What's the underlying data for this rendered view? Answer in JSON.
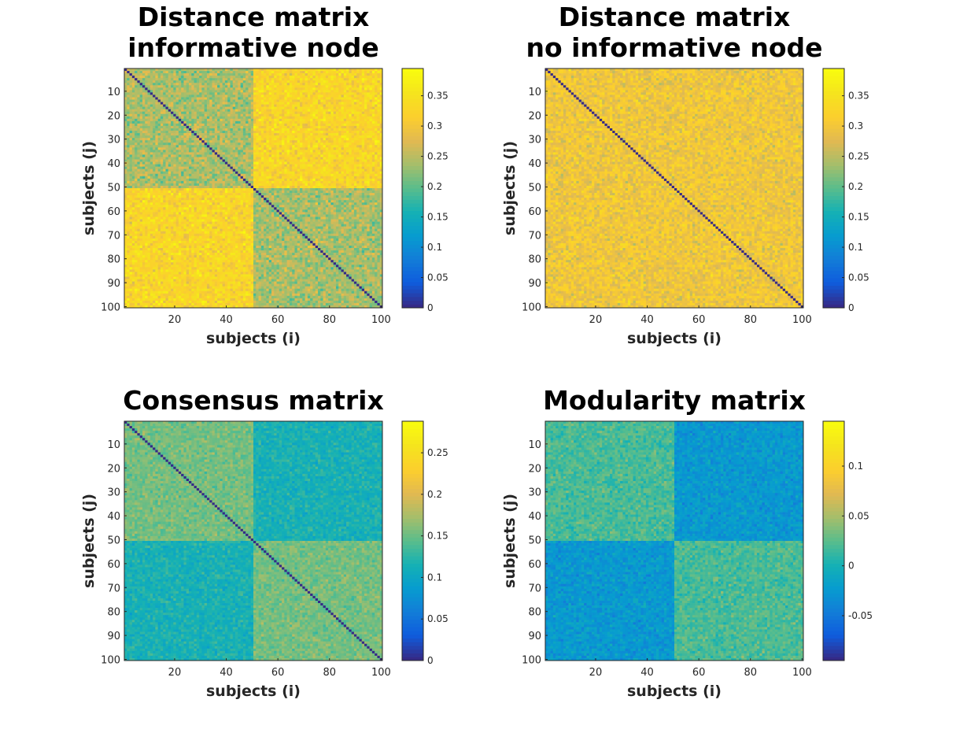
{
  "chart_data": [
    {
      "type": "heatmap",
      "title_lines": [
        "Distance matrix",
        "informative node"
      ],
      "xlabel": "subjects (i)",
      "ylabel": "subjects (j)",
      "n": 100,
      "x_ticks": [
        20,
        40,
        60,
        80,
        100
      ],
      "y_ticks": [
        10,
        20,
        30,
        40,
        50,
        60,
        70,
        80,
        90,
        100
      ],
      "colorbar": {
        "min": 0,
        "max": 0.395,
        "ticks": [
          0,
          0.05,
          0.1,
          0.15,
          0.2,
          0.25,
          0.3,
          0.35
        ],
        "tick_labels": [
          "0",
          "0.05",
          "0.1",
          "0.15",
          "0.2",
          "0.25",
          "0.3",
          "0.35"
        ]
      },
      "diagonal_value": 0,
      "blocks": {
        "split_at": 50,
        "within_mean": 0.24,
        "between_mean": 0.33,
        "spread": 0.07
      },
      "colormap": "parula"
    },
    {
      "type": "heatmap",
      "title_lines": [
        "Distance matrix",
        "no informative node"
      ],
      "xlabel": "subjects (i)",
      "ylabel": "subjects (j)",
      "n": 100,
      "x_ticks": [
        20,
        40,
        60,
        80,
        100
      ],
      "y_ticks": [
        10,
        20,
        30,
        40,
        50,
        60,
        70,
        80,
        90,
        100
      ],
      "colorbar": {
        "min": 0,
        "max": 0.395,
        "ticks": [
          0,
          0.05,
          0.1,
          0.15,
          0.2,
          0.25,
          0.3,
          0.35
        ],
        "tick_labels": [
          "0",
          "0.05",
          "0.1",
          "0.15",
          "0.2",
          "0.25",
          "0.3",
          "0.35"
        ]
      },
      "diagonal_value": 0,
      "blocks": {
        "split_at": 50,
        "within_mean": 0.3,
        "between_mean": 0.3,
        "spread": 0.065
      },
      "colormap": "parula"
    },
    {
      "type": "heatmap",
      "title_lines": [
        "Consensus matrix"
      ],
      "xlabel": "subjects (i)",
      "ylabel": "subjects (j)",
      "n": 100,
      "x_ticks": [
        20,
        40,
        60,
        80,
        100
      ],
      "y_ticks": [
        10,
        20,
        30,
        40,
        50,
        60,
        70,
        80,
        90,
        100
      ],
      "colorbar": {
        "min": 0,
        "max": 0.288,
        "ticks": [
          0,
          0.05,
          0.1,
          0.15,
          0.2,
          0.25
        ],
        "tick_labels": [
          "0",
          "0.05",
          "0.1",
          "0.15",
          "0.2",
          "0.25"
        ]
      },
      "diagonal_value": 0,
      "blocks": {
        "split_at": 50,
        "within_mean": 0.155,
        "between_mean": 0.115,
        "spread": 0.03
      },
      "colormap": "parula"
    },
    {
      "type": "heatmap",
      "title_lines": [
        "Modularity matrix"
      ],
      "xlabel": "subjects (i)",
      "ylabel": "subjects (j)",
      "n": 100,
      "x_ticks": [
        20,
        40,
        60,
        80,
        100
      ],
      "y_ticks": [
        10,
        20,
        30,
        40,
        50,
        60,
        70,
        80,
        90,
        100
      ],
      "colorbar": {
        "min": -0.095,
        "max": 0.145,
        "ticks": [
          -0.05,
          0,
          0.05,
          0.1
        ],
        "tick_labels": [
          "-0.05",
          "0",
          "0.05",
          "0.1"
        ]
      },
      "diagonal_value": null,
      "blocks": {
        "split_at": 50,
        "within_mean": 0.02,
        "between_mean": -0.025,
        "spread": 0.028
      },
      "colormap": "parula"
    }
  ]
}
